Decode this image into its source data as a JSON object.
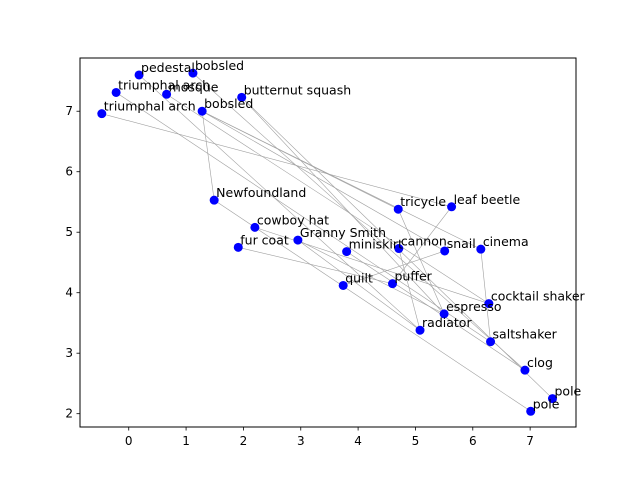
{
  "chart_data": {
    "type": "scatter",
    "title": "",
    "xlabel": "",
    "ylabel": "",
    "xlim": [
      -0.85,
      7.8
    ],
    "ylim": [
      1.78,
      7.88
    ],
    "xticks": [
      0,
      1,
      2,
      3,
      4,
      5,
      6,
      7
    ],
    "yticks": [
      2,
      3,
      4,
      5,
      6,
      7
    ],
    "grid": false,
    "point_color": "#0000ff",
    "edge_color": "#a0a0a0",
    "points": [
      {
        "label": "pedestal",
        "x": 0.18,
        "y": 7.6
      },
      {
        "label": "bobsled",
        "x": 1.12,
        "y": 7.63
      },
      {
        "label": "triumphal arch",
        "x": -0.22,
        "y": 7.31
      },
      {
        "label": "mosque",
        "x": 0.66,
        "y": 7.28
      },
      {
        "label": "butternut squash",
        "x": 1.97,
        "y": 7.23
      },
      {
        "label": "bobsled",
        "x": 1.28,
        "y": 7.0
      },
      {
        "label": "triumphal arch",
        "x": -0.47,
        "y": 6.96
      },
      {
        "label": "Newfoundland",
        "x": 1.49,
        "y": 5.53
      },
      {
        "label": "tricycle",
        "x": 4.7,
        "y": 5.38
      },
      {
        "label": "leaf beetle",
        "x": 5.63,
        "y": 5.42
      },
      {
        "label": "cowboy hat",
        "x": 2.2,
        "y": 5.08
      },
      {
        "label": "Granny Smith",
        "x": 2.95,
        "y": 4.87
      },
      {
        "label": "fur coat",
        "x": 1.91,
        "y": 4.75
      },
      {
        "label": "miniskirt",
        "x": 3.8,
        "y": 4.68
      },
      {
        "label": "cannon",
        "x": 4.71,
        "y": 4.73
      },
      {
        "label": "snail",
        "x": 5.51,
        "y": 4.69
      },
      {
        "label": "cinema",
        "x": 6.14,
        "y": 4.72
      },
      {
        "label": "quilt",
        "x": 3.74,
        "y": 4.12
      },
      {
        "label": "puffer",
        "x": 4.6,
        "y": 4.15
      },
      {
        "label": "cocktail shaker",
        "x": 6.28,
        "y": 3.82
      },
      {
        "label": "espresso",
        "x": 5.5,
        "y": 3.65
      },
      {
        "label": "radiator",
        "x": 5.08,
        "y": 3.38
      },
      {
        "label": "saltshaker",
        "x": 6.31,
        "y": 3.19
      },
      {
        "label": "clog",
        "x": 6.91,
        "y": 2.72
      },
      {
        "label": "pole",
        "x": 7.39,
        "y": 2.25
      },
      {
        "label": "pole",
        "x": 7.01,
        "y": 2.04
      }
    ],
    "edges": [
      [
        6,
        9
      ],
      [
        2,
        22
      ],
      [
        0,
        21
      ],
      [
        3,
        19
      ],
      [
        1,
        23
      ],
      [
        5,
        16
      ],
      [
        5,
        15
      ],
      [
        5,
        8
      ],
      [
        4,
        20
      ],
      [
        4,
        24
      ],
      [
        7,
        25
      ],
      [
        7,
        5
      ],
      [
        10,
        19
      ],
      [
        11,
        20
      ],
      [
        12,
        18
      ],
      [
        13,
        23
      ],
      [
        14,
        21
      ],
      [
        16,
        22
      ],
      [
        17,
        15
      ],
      [
        18,
        9
      ],
      [
        11,
        21
      ],
      [
        8,
        20
      ]
    ]
  }
}
